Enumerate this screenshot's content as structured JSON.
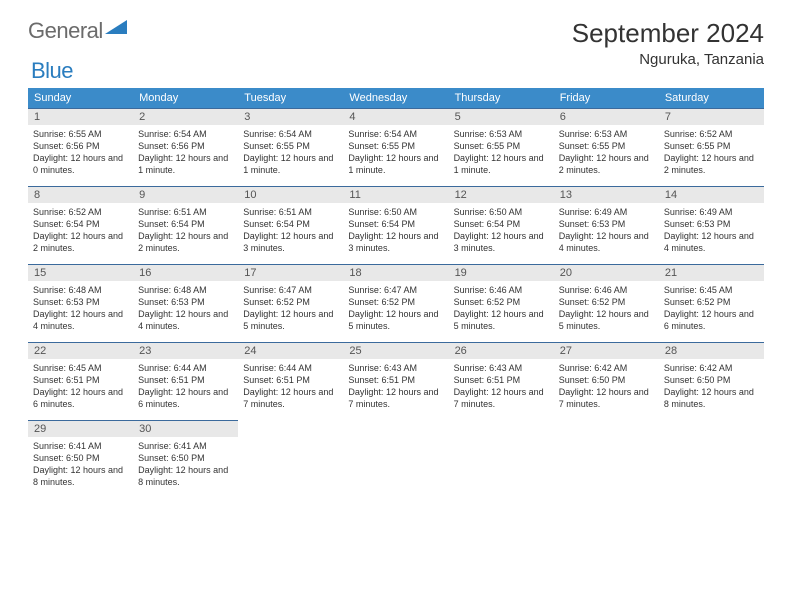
{
  "logo": {
    "general": "General",
    "blue": "Blue"
  },
  "title": "September 2024",
  "location": "Nguruka, Tanzania",
  "colors": {
    "header_bg": "#3b8bc9",
    "header_text": "#ffffff",
    "daynum_bg": "#e8e8e8",
    "border": "#3b6a9c",
    "logo_gray": "#6b6b6b",
    "logo_blue": "#2a7dbf"
  },
  "weekdays": [
    "Sunday",
    "Monday",
    "Tuesday",
    "Wednesday",
    "Thursday",
    "Friday",
    "Saturday"
  ],
  "weeks": [
    [
      {
        "n": "1",
        "sr": "6:55 AM",
        "ss": "6:56 PM",
        "dl": "12 hours and 0 minutes."
      },
      {
        "n": "2",
        "sr": "6:54 AM",
        "ss": "6:56 PM",
        "dl": "12 hours and 1 minute."
      },
      {
        "n": "3",
        "sr": "6:54 AM",
        "ss": "6:55 PM",
        "dl": "12 hours and 1 minute."
      },
      {
        "n": "4",
        "sr": "6:54 AM",
        "ss": "6:55 PM",
        "dl": "12 hours and 1 minute."
      },
      {
        "n": "5",
        "sr": "6:53 AM",
        "ss": "6:55 PM",
        "dl": "12 hours and 1 minute."
      },
      {
        "n": "6",
        "sr": "6:53 AM",
        "ss": "6:55 PM",
        "dl": "12 hours and 2 minutes."
      },
      {
        "n": "7",
        "sr": "6:52 AM",
        "ss": "6:55 PM",
        "dl": "12 hours and 2 minutes."
      }
    ],
    [
      {
        "n": "8",
        "sr": "6:52 AM",
        "ss": "6:54 PM",
        "dl": "12 hours and 2 minutes."
      },
      {
        "n": "9",
        "sr": "6:51 AM",
        "ss": "6:54 PM",
        "dl": "12 hours and 2 minutes."
      },
      {
        "n": "10",
        "sr": "6:51 AM",
        "ss": "6:54 PM",
        "dl": "12 hours and 3 minutes."
      },
      {
        "n": "11",
        "sr": "6:50 AM",
        "ss": "6:54 PM",
        "dl": "12 hours and 3 minutes."
      },
      {
        "n": "12",
        "sr": "6:50 AM",
        "ss": "6:54 PM",
        "dl": "12 hours and 3 minutes."
      },
      {
        "n": "13",
        "sr": "6:49 AM",
        "ss": "6:53 PM",
        "dl": "12 hours and 4 minutes."
      },
      {
        "n": "14",
        "sr": "6:49 AM",
        "ss": "6:53 PM",
        "dl": "12 hours and 4 minutes."
      }
    ],
    [
      {
        "n": "15",
        "sr": "6:48 AM",
        "ss": "6:53 PM",
        "dl": "12 hours and 4 minutes."
      },
      {
        "n": "16",
        "sr": "6:48 AM",
        "ss": "6:53 PM",
        "dl": "12 hours and 4 minutes."
      },
      {
        "n": "17",
        "sr": "6:47 AM",
        "ss": "6:52 PM",
        "dl": "12 hours and 5 minutes."
      },
      {
        "n": "18",
        "sr": "6:47 AM",
        "ss": "6:52 PM",
        "dl": "12 hours and 5 minutes."
      },
      {
        "n": "19",
        "sr": "6:46 AM",
        "ss": "6:52 PM",
        "dl": "12 hours and 5 minutes."
      },
      {
        "n": "20",
        "sr": "6:46 AM",
        "ss": "6:52 PM",
        "dl": "12 hours and 5 minutes."
      },
      {
        "n": "21",
        "sr": "6:45 AM",
        "ss": "6:52 PM",
        "dl": "12 hours and 6 minutes."
      }
    ],
    [
      {
        "n": "22",
        "sr": "6:45 AM",
        "ss": "6:51 PM",
        "dl": "12 hours and 6 minutes."
      },
      {
        "n": "23",
        "sr": "6:44 AM",
        "ss": "6:51 PM",
        "dl": "12 hours and 6 minutes."
      },
      {
        "n": "24",
        "sr": "6:44 AM",
        "ss": "6:51 PM",
        "dl": "12 hours and 7 minutes."
      },
      {
        "n": "25",
        "sr": "6:43 AM",
        "ss": "6:51 PM",
        "dl": "12 hours and 7 minutes."
      },
      {
        "n": "26",
        "sr": "6:43 AM",
        "ss": "6:51 PM",
        "dl": "12 hours and 7 minutes."
      },
      {
        "n": "27",
        "sr": "6:42 AM",
        "ss": "6:50 PM",
        "dl": "12 hours and 7 minutes."
      },
      {
        "n": "28",
        "sr": "6:42 AM",
        "ss": "6:50 PM",
        "dl": "12 hours and 8 minutes."
      }
    ],
    [
      {
        "n": "29",
        "sr": "6:41 AM",
        "ss": "6:50 PM",
        "dl": "12 hours and 8 minutes."
      },
      {
        "n": "30",
        "sr": "6:41 AM",
        "ss": "6:50 PM",
        "dl": "12 hours and 8 minutes."
      },
      null,
      null,
      null,
      null,
      null
    ]
  ],
  "labels": {
    "sunrise": "Sunrise: ",
    "sunset": "Sunset: ",
    "daylight": "Daylight: "
  }
}
